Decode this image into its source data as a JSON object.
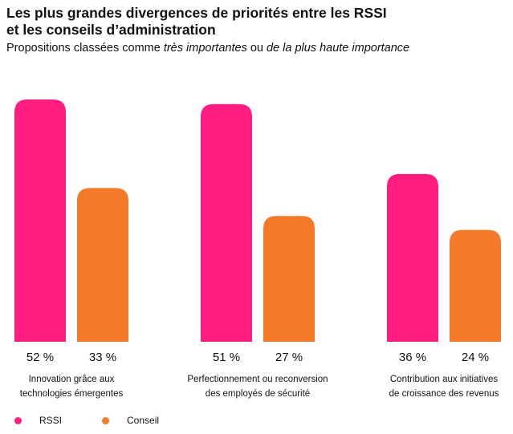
{
  "chart_data": {
    "type": "bar",
    "title_line1": "Les plus grandes divergences de priorités entre les RSSI",
    "title_line2": "et les conseils d’administration",
    "subtitle": {
      "part1": "Propositions classées comme ",
      "italic1": "très importantes",
      "part2": " ou ",
      "italic2": "de la plus haute importance"
    },
    "categories": [
      [
        "Innovation grâce aux",
        "technologies émergentes"
      ],
      [
        "Perfectionnement ou reconversion",
        "des employés de sécurité"
      ],
      [
        "Contribution aux initiatives",
        "de croissance des revenus"
      ]
    ],
    "series": [
      {
        "name": "RSSI",
        "color": "#ff1e7f",
        "values": [
          52,
          51,
          36
        ],
        "labels": [
          "52 %",
          "51 %",
          "36 %"
        ]
      },
      {
        "name": "Conseil",
        "color": "#f47a2a",
        "values": [
          33,
          27,
          24
        ],
        "labels": [
          "33 %",
          "27 %",
          "24 %"
        ]
      }
    ],
    "ylim": [
      0,
      52
    ],
    "grid": false,
    "legend_position": "bottom-left"
  }
}
